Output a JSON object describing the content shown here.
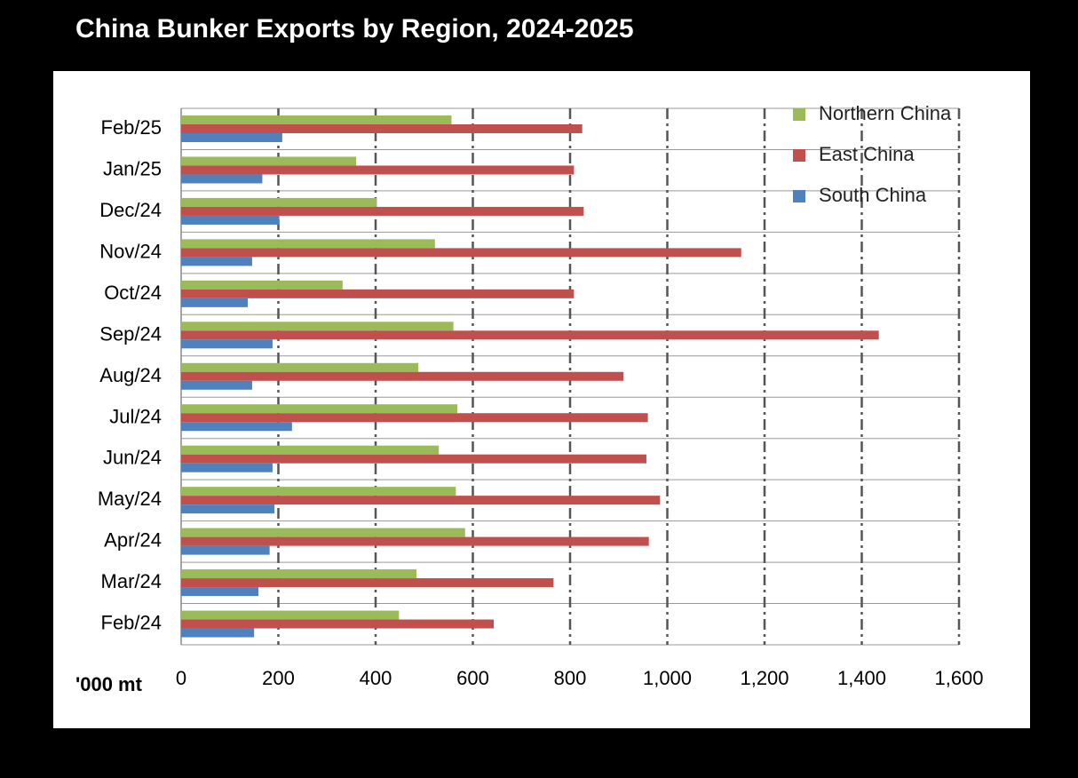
{
  "chart_data": {
    "type": "barh",
    "title": "China Bunker Exports by Region, 2024-2025",
    "x_label": "'000 mt",
    "categories": [
      "Feb/24",
      "Mar/24",
      "Apr/24",
      "May/24",
      "Jun/24",
      "Jul/24",
      "Aug/24",
      "Sep/24",
      "Oct/24",
      "Nov/24",
      "Dec/24",
      "Jan/25",
      "Feb/25"
    ],
    "series": [
      {
        "name": "Northern China",
        "color": "#9bbb59",
        "values": [
          448,
          484,
          584,
          565,
          530,
          568,
          488,
          560,
          332,
          522,
          402,
          360,
          556
        ]
      },
      {
        "name": "East China",
        "color": "#c0504d",
        "values": [
          643,
          766,
          962,
          985,
          957,
          960,
          910,
          1435,
          808,
          1152,
          828,
          808,
          825
        ]
      },
      {
        "name": "South China",
        "color": "#4f81bd",
        "values": [
          150,
          159,
          182,
          192,
          188,
          228,
          146,
          188,
          137,
          146,
          202,
          167,
          208
        ]
      }
    ],
    "xlim": [
      0,
      1600
    ],
    "xticks": [
      0,
      200,
      400,
      600,
      800,
      {
        "value": 1000,
        "label": "1,000"
      },
      {
        "value": 1200,
        "label": "1,200"
      },
      {
        "value": 1400,
        "label": "1,400"
      },
      {
        "value": 1600,
        "label": "1,600"
      }
    ],
    "grid": true,
    "legend": "upper right"
  }
}
